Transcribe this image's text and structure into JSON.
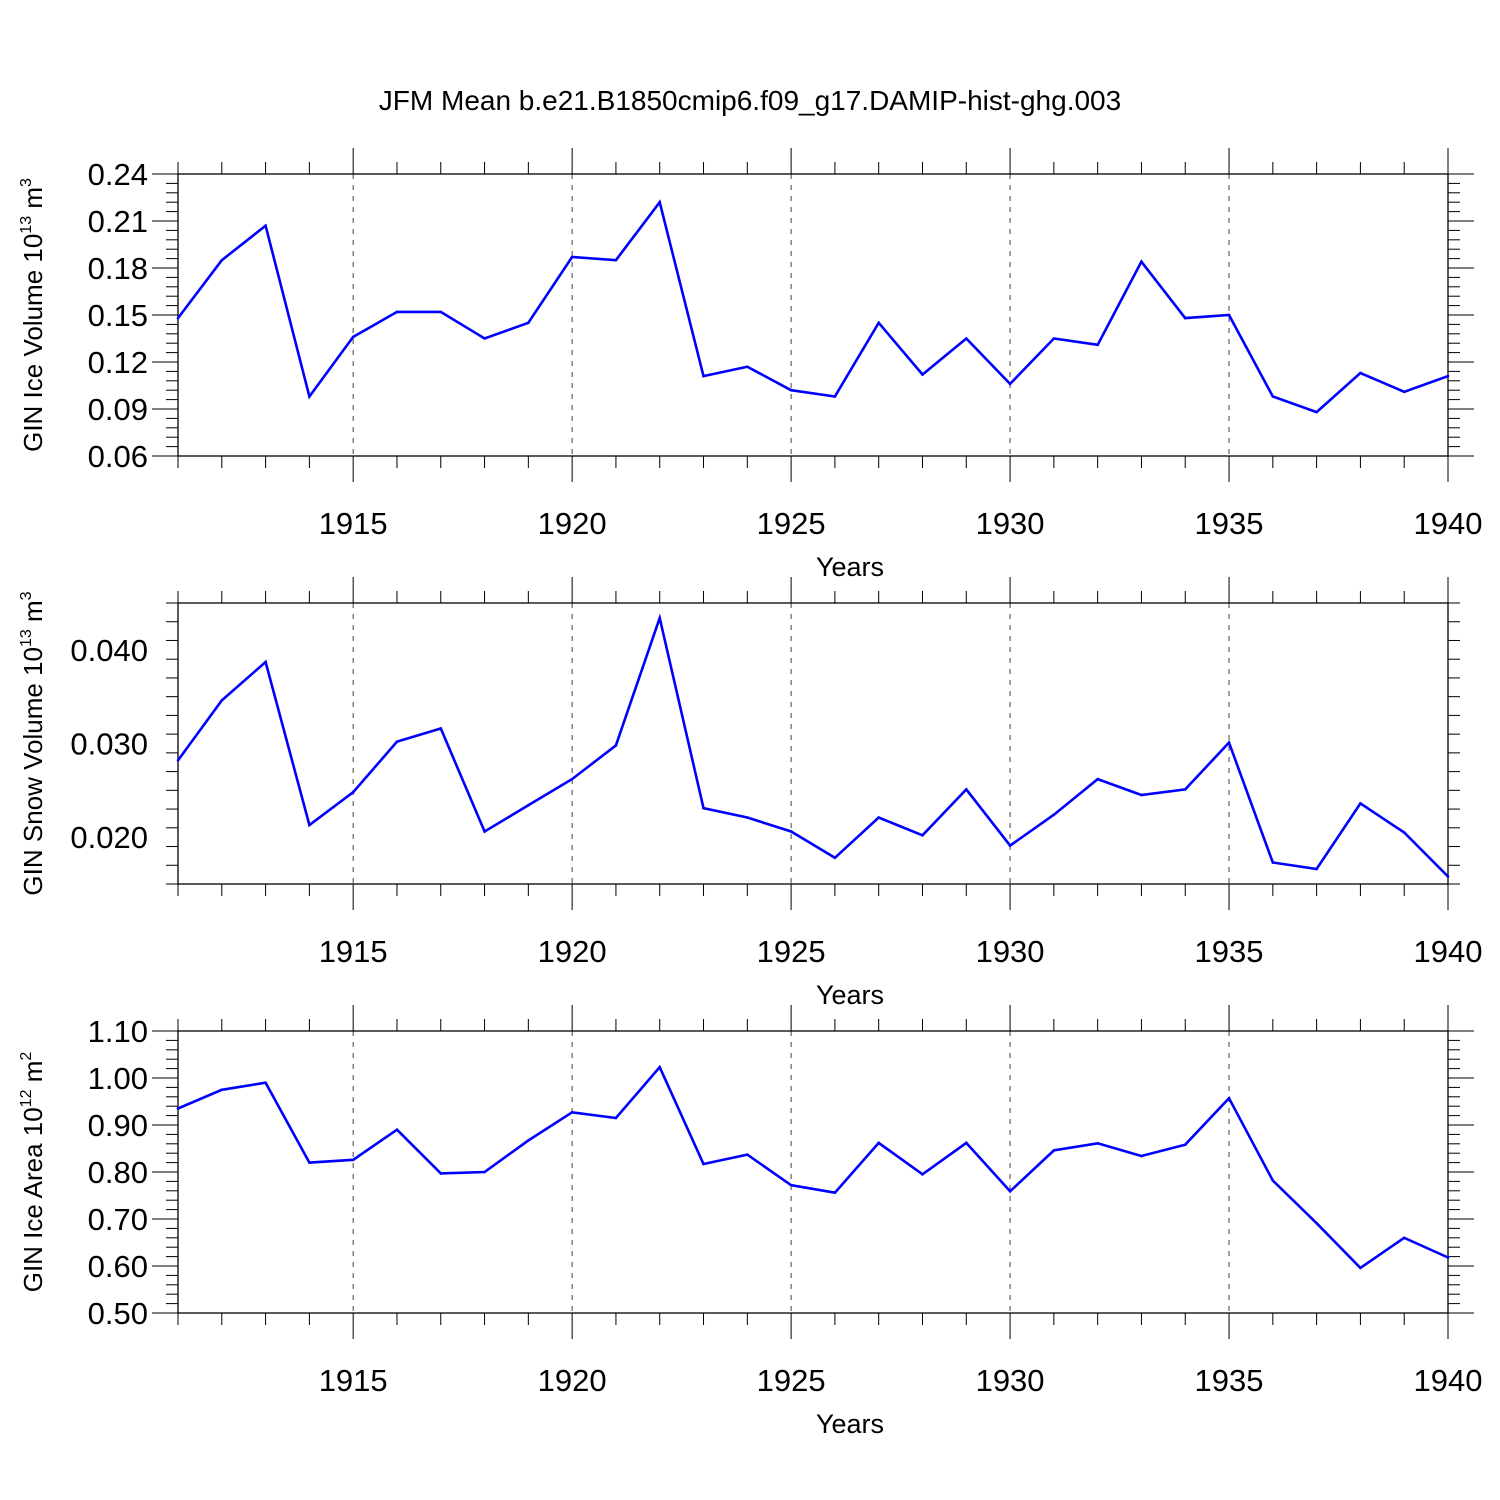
{
  "title": "JFM Mean b.e21.B1850cmip6.f09_g17.DAMIP-hist-ghg.003",
  "line_color": "#0000ff",
  "chart_data": [
    {
      "type": "line",
      "title": "JFM Mean b.e21.B1850cmip6.f09_g17.DAMIP-hist-ghg.003",
      "ylabel": "GIN Ice Volume 10",
      "ylabel_sup": "13",
      "ylabel_unit": " m",
      "ylabel_unit_sup": "3",
      "xlabel": "Years",
      "xlim": [
        1911,
        1940
      ],
      "ylim": [
        0.06,
        0.24
      ],
      "yticks": [
        0.06,
        0.09,
        0.12,
        0.15,
        0.18,
        0.21,
        0.24
      ],
      "ytick_labels": [
        "0.06",
        "0.09",
        "0.12",
        "0.15",
        "0.18",
        "0.21",
        "0.24"
      ],
      "xticks": [
        1915,
        1920,
        1925,
        1930,
        1935,
        1940
      ],
      "xtick_labels": [
        "1915",
        "1920",
        "1925",
        "1930",
        "1935",
        "1940"
      ],
      "x": [
        1911,
        1912,
        1913,
        1914,
        1915,
        1916,
        1917,
        1918,
        1919,
        1920,
        1921,
        1922,
        1923,
        1924,
        1925,
        1926,
        1927,
        1928,
        1929,
        1930,
        1931,
        1932,
        1933,
        1934,
        1935,
        1936,
        1937,
        1938,
        1939,
        1940
      ],
      "series": [
        {
          "name": "GIN Ice Volume",
          "values": [
            0.148,
            0.185,
            0.207,
            0.098,
            0.136,
            0.152,
            0.152,
            0.135,
            0.145,
            0.187,
            0.185,
            0.222,
            0.111,
            0.117,
            0.102,
            0.098,
            0.145,
            0.112,
            0.135,
            0.106,
            0.135,
            0.131,
            0.184,
            0.148,
            0.15,
            0.098,
            0.088,
            0.113,
            0.101,
            0.111
          ]
        }
      ]
    },
    {
      "type": "line",
      "ylabel": "GIN Snow Volume 10",
      "ylabel_sup": "13",
      "ylabel_unit": " m",
      "ylabel_unit_sup": "3",
      "xlabel": "Years",
      "xlim": [
        1911,
        1940
      ],
      "ylim": [
        0.015,
        0.045
      ],
      "yticks": [
        0.02,
        0.03,
        0.04
      ],
      "ytick_labels": [
        "0.020",
        "0.030",
        "0.040"
      ],
      "xticks": [
        1915,
        1920,
        1925,
        1930,
        1935,
        1940
      ],
      "xtick_labels": [
        "1915",
        "1920",
        "1925",
        "1930",
        "1935",
        "1940"
      ],
      "x": [
        1911,
        1912,
        1913,
        1914,
        1915,
        1916,
        1917,
        1918,
        1919,
        1920,
        1921,
        1922,
        1923,
        1924,
        1925,
        1926,
        1927,
        1928,
        1929,
        1930,
        1931,
        1932,
        1933,
        1934,
        1935,
        1936,
        1937,
        1938,
        1939,
        1940
      ],
      "series": [
        {
          "name": "GIN Snow Volume",
          "values": [
            0.0282,
            0.0346,
            0.0387,
            0.0213,
            0.0248,
            0.0302,
            0.0316,
            0.0206,
            0.0234,
            0.0262,
            0.0298,
            0.0434,
            0.0231,
            0.0221,
            0.0206,
            0.0178,
            0.0221,
            0.0202,
            0.0251,
            0.0191,
            0.0224,
            0.0262,
            0.0245,
            0.0251,
            0.0301,
            0.0173,
            0.0166,
            0.0236,
            0.0205,
            0.0158
          ]
        }
      ]
    },
    {
      "type": "line",
      "ylabel": "GIN Ice Area 10",
      "ylabel_sup": "12",
      "ylabel_unit": " m",
      "ylabel_unit_sup": "2",
      "xlabel": "Years",
      "xlim": [
        1911,
        1940
      ],
      "ylim": [
        0.5,
        1.1
      ],
      "yticks": [
        0.5,
        0.6,
        0.7,
        0.8,
        0.9,
        1.0,
        1.1
      ],
      "ytick_labels": [
        "0.50",
        "0.60",
        "0.70",
        "0.80",
        "0.90",
        "1.00",
        "1.10"
      ],
      "xticks": [
        1915,
        1920,
        1925,
        1930,
        1935,
        1940
      ],
      "xtick_labels": [
        "1915",
        "1920",
        "1925",
        "1930",
        "1935",
        "1940"
      ],
      "x": [
        1911,
        1912,
        1913,
        1914,
        1915,
        1916,
        1917,
        1918,
        1919,
        1920,
        1921,
        1922,
        1923,
        1924,
        1925,
        1926,
        1927,
        1928,
        1929,
        1930,
        1931,
        1932,
        1933,
        1934,
        1935,
        1936,
        1937,
        1938,
        1939,
        1940
      ],
      "series": [
        {
          "name": "GIN Ice Area",
          "values": [
            0.935,
            0.975,
            0.99,
            0.82,
            0.826,
            0.89,
            0.797,
            0.8,
            0.867,
            0.927,
            0.915,
            1.023,
            0.817,
            0.837,
            0.772,
            0.756,
            0.862,
            0.795,
            0.862,
            0.759,
            0.846,
            0.861,
            0.834,
            0.858,
            0.957,
            0.782,
            0.691,
            0.596,
            0.66,
            0.618
          ]
        }
      ]
    }
  ]
}
